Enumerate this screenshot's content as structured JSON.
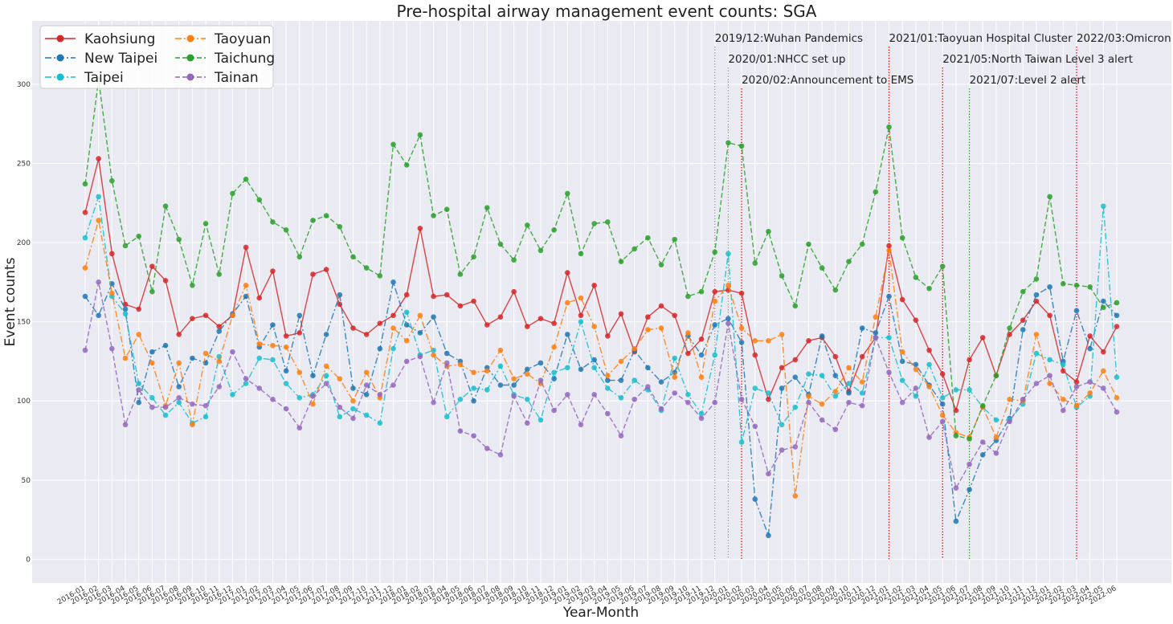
{
  "chart_data": {
    "type": "line",
    "title": "Pre-hospital airway management event counts: SGA",
    "xlabel": "Year-Month",
    "ylabel": "Event counts",
    "ylim": [
      -15,
      340
    ],
    "yticks": [
      0,
      50,
      100,
      150,
      200,
      250,
      300
    ],
    "grid": true,
    "legend": {
      "placement": "top-left",
      "columns": 2
    },
    "categories": [
      "2016-01",
      "2016-02",
      "2016-03",
      "2016-04",
      "2016-05",
      "2016-06",
      "2016-07",
      "2016-08",
      "2016-09",
      "2016-10",
      "2016-11",
      "2016-12",
      "2017-01",
      "2017-02",
      "2017-03",
      "2017-04",
      "2017-05",
      "2017-06",
      "2017-07",
      "2017-08",
      "2017-09",
      "2017-10",
      "2017-11",
      "2017-12",
      "2018-01",
      "2018-02",
      "2018-03",
      "2018-04",
      "2018-05",
      "2018-06",
      "2018-07",
      "2018-08",
      "2018-09",
      "2018-10",
      "2018-11",
      "2018-12",
      "2019-01",
      "2019-02",
      "2019-03",
      "2019-04",
      "2019-05",
      "2019-06",
      "2019-07",
      "2019-08",
      "2019-09",
      "2019-10",
      "2019-11",
      "2019-12",
      "2020-01",
      "2020-02",
      "2020-03",
      "2020-04",
      "2020-05",
      "2020-06",
      "2020-07",
      "2020-08",
      "2020-09",
      "2020-10",
      "2020-11",
      "2020-12",
      "2021-01",
      "2021-02",
      "2021-03",
      "2021-04",
      "2021-05",
      "2021-06",
      "2021-07",
      "2021-08",
      "2021-09",
      "2021-10",
      "2021-11",
      "2021-12",
      "2022-01",
      "2022-02",
      "2022-03",
      "2022-04",
      "2022-05",
      "2022-06"
    ],
    "series": [
      {
        "name": "Kaohsiung",
        "color": "#d62728",
        "dash": "solid",
        "values": [
          219,
          253,
          193,
          161,
          158,
          185,
          176,
          142,
          152,
          154,
          147,
          154,
          197,
          165,
          182,
          141,
          143,
          180,
          183,
          161,
          146,
          142,
          149,
          154,
          167,
          209,
          166,
          167,
          160,
          163,
          148,
          153,
          169,
          147,
          152,
          149,
          181,
          154,
          173,
          141,
          155,
          131,
          153,
          160,
          154,
          130,
          139,
          169,
          170,
          168,
          129,
          101,
          121,
          126,
          138,
          140,
          128,
          106,
          128,
          140,
          198,
          164,
          151,
          132,
          117,
          94,
          126,
          140,
          116,
          142,
          151,
          163,
          154,
          119,
          112,
          141,
          131,
          147
        ]
      },
      {
        "name": "New Taipei",
        "color": "#1f77b4",
        "dash": "dashdot",
        "values": [
          166,
          154,
          174,
          158,
          99,
          131,
          135,
          109,
          127,
          124,
          144,
          155,
          166,
          134,
          148,
          119,
          154,
          116,
          142,
          167,
          108,
          104,
          133,
          175,
          148,
          143,
          153,
          130,
          125,
          100,
          121,
          110,
          110,
          120,
          124,
          114,
          142,
          120,
          126,
          113,
          113,
          132,
          121,
          112,
          118,
          141,
          129,
          148,
          152,
          137,
          38,
          15,
          108,
          115,
          104,
          141,
          116,
          105,
          146,
          143,
          166,
          125,
          123,
          110,
          98,
          24,
          44,
          66,
          75,
          89,
          145,
          167,
          172,
          125,
          157,
          133,
          163,
          154
        ]
      },
      {
        "name": "Taipei",
        "color": "#17becf",
        "dash": "dashdot",
        "values": [
          203,
          229,
          166,
          155,
          111,
          102,
          91,
          99,
          86,
          90,
          128,
          104,
          111,
          127,
          126,
          111,
          102,
          104,
          116,
          90,
          95,
          91,
          86,
          133,
          156,
          129,
          132,
          90,
          101,
          108,
          107,
          122,
          104,
          101,
          88,
          118,
          121,
          150,
          121,
          108,
          102,
          113,
          107,
          94,
          127,
          104,
          92,
          129,
          193,
          74,
          108,
          105,
          85,
          96,
          117,
          116,
          103,
          111,
          105,
          140,
          140,
          113,
          103,
          123,
          102,
          107,
          107,
          96,
          88,
          88,
          98,
          130,
          126,
          123,
          96,
          103,
          223,
          115
        ]
      },
      {
        "name": "Taoyuan",
        "color": "#ff7f0e",
        "dash": "dashdot",
        "values": [
          184,
          214,
          168,
          127,
          142,
          124,
          97,
          124,
          85,
          130,
          125,
          154,
          173,
          136,
          135,
          134,
          118,
          98,
          122,
          114,
          100,
          118,
          102,
          146,
          138,
          154,
          129,
          122,
          123,
          118,
          119,
          132,
          114,
          117,
          111,
          134,
          162,
          165,
          147,
          116,
          125,
          133,
          145,
          146,
          115,
          143,
          115,
          163,
          173,
          146,
          138,
          138,
          142,
          40,
          103,
          98,
          106,
          121,
          112,
          153,
          195,
          131,
          120,
          109,
          91,
          80,
          77,
          96,
          77,
          101,
          100,
          142,
          111,
          101,
          97,
          105,
          119,
          102
        ]
      },
      {
        "name": "Taichung",
        "color": "#2ca02c",
        "dash": "dashed",
        "values": [
          237,
          303,
          239,
          198,
          204,
          169,
          223,
          202,
          173,
          212,
          180,
          231,
          240,
          227,
          213,
          208,
          191,
          214,
          217,
          210,
          191,
          184,
          179,
          262,
          249,
          268,
          217,
          221,
          180,
          191,
          222,
          199,
          189,
          211,
          195,
          208,
          231,
          193,
          212,
          213,
          188,
          196,
          203,
          186,
          202,
          166,
          169,
          194,
          263,
          261,
          187,
          207,
          179,
          160,
          199,
          184,
          170,
          188,
          199,
          232,
          273,
          203,
          178,
          171,
          185,
          78,
          76,
          97,
          116,
          146,
          169,
          177,
          229,
          174,
          173,
          172,
          159,
          162
        ]
      },
      {
        "name": "Tainan",
        "color": "#9467bd",
        "dash": "dashed",
        "values": [
          132,
          175,
          133,
          85,
          107,
          96,
          96,
          102,
          98,
          97,
          109,
          131,
          114,
          108,
          101,
          95,
          83,
          103,
          111,
          96,
          89,
          110,
          104,
          110,
          125,
          128,
          99,
          124,
          81,
          78,
          70,
          66,
          103,
          86,
          113,
          94,
          104,
          85,
          104,
          92,
          78,
          101,
          109,
          95,
          105,
          99,
          89,
          99,
          149,
          101,
          84,
          54,
          69,
          71,
          99,
          88,
          82,
          99,
          97,
          140,
          118,
          99,
          108,
          77,
          87,
          45,
          60,
          74,
          67,
          87,
          101,
          111,
          116,
          94,
          109,
          112,
          108,
          93
        ]
      }
    ],
    "annotations": [
      {
        "label": "2019/12:Wuhan Pandemics",
        "x": "2019-12",
        "color": "#9e9e9e",
        "level": 1
      },
      {
        "label": "2020/01:NHCC set up",
        "x": "2020-01",
        "color": "#9e9e9e",
        "level": 2
      },
      {
        "label": "2020/02:Announcement to EMS",
        "x": "2020-02",
        "color": "#ff0000",
        "level": 3
      },
      {
        "label": "2021/01:Taoyuan Hospital Cluster",
        "x": "2021-01",
        "color": "#ff0000",
        "level": 1
      },
      {
        "label": "2021/05:North Taiwan Level 3 alert",
        "x": "2021-05",
        "color": "#ff0000",
        "level": 2
      },
      {
        "label": "2021/07:Level 2 alert",
        "x": "2021-07",
        "color": "#2ca02c",
        "level": 3
      },
      {
        "label": "2022/03:Omicron",
        "x": "2022-03",
        "color": "#ff0000",
        "level": 1
      }
    ]
  }
}
